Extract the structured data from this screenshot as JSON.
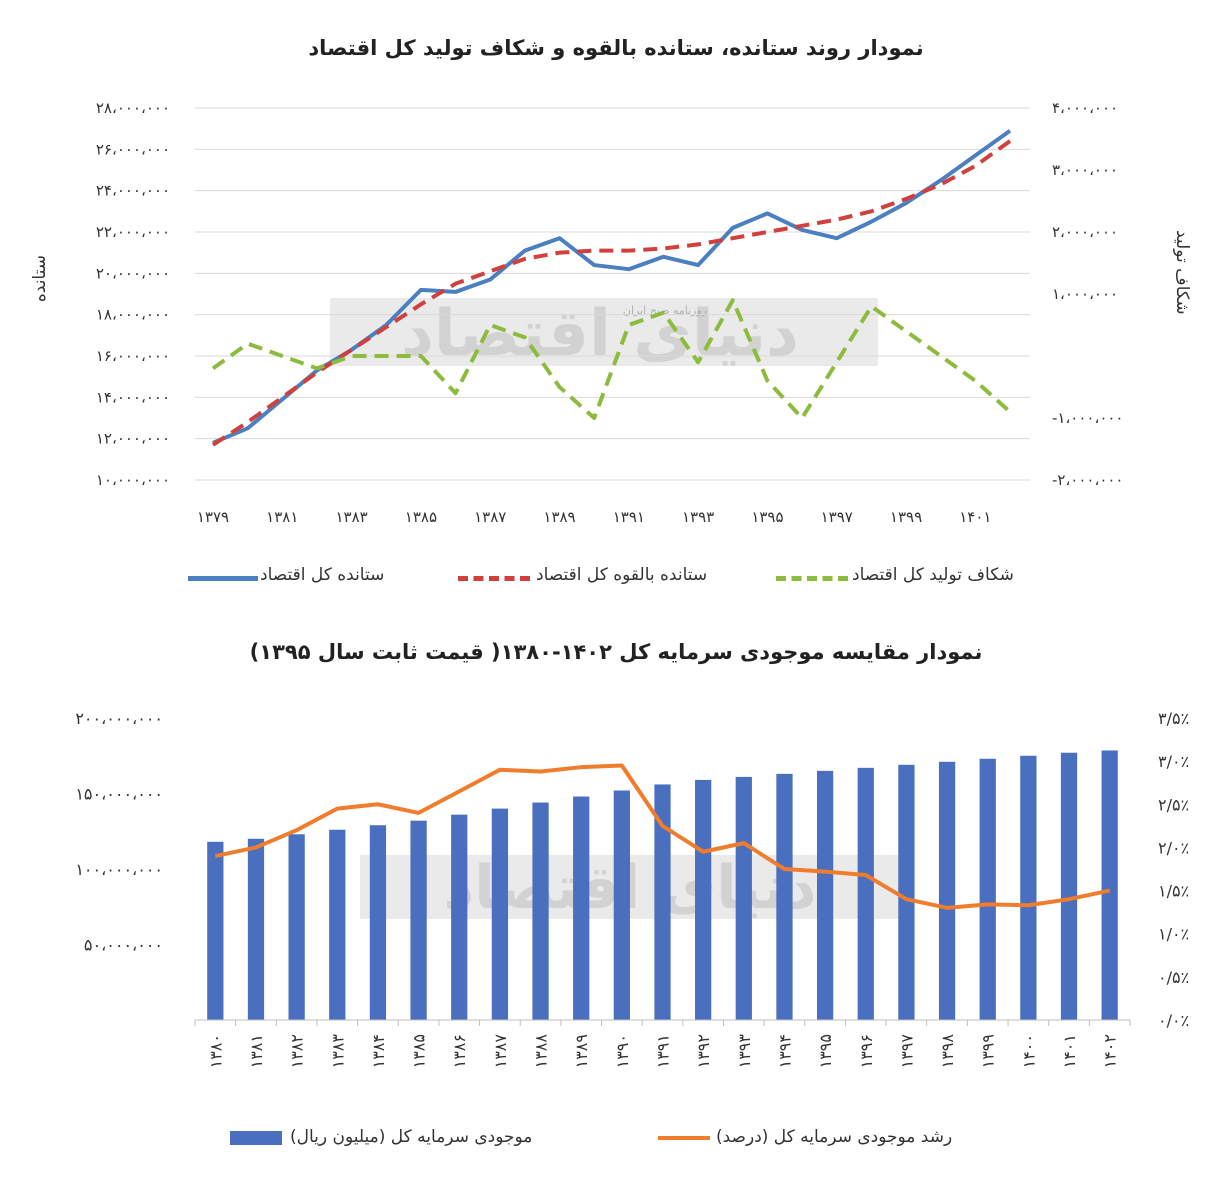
{
  "chart_data": [
    {
      "type": "line",
      "title": "نمودار روند ستانده، ستانده بالقوه و شکاف تولید کل اقتصاد",
      "ylabel": "ستانده",
      "y2label": "شکاف تولید",
      "x": [
        "1379",
        "1380",
        "1381",
        "1382",
        "1383",
        "1384",
        "1385",
        "1386",
        "1387",
        "1388",
        "1389",
        "1390",
        "1391",
        "1392",
        "1393",
        "1394",
        "1395",
        "1396",
        "1397",
        "1398",
        "1399",
        "1400",
        "1401",
        "1402"
      ],
      "xtick_labels": [
        "۱۳۷۹",
        "۱۳۸۱",
        "۱۳۸۳",
        "۱۳۸۵",
        "۱۳۸۷",
        "۱۳۸۹",
        "۱۳۹۱",
        "۱۳۹۳",
        "۱۳۹۵",
        "۱۳۹۷",
        "۱۳۹۹",
        "۱۴۰۱"
      ],
      "ylim": [
        10000000,
        28000000
      ],
      "yticks": [
        "۱۰،۰۰۰،۰۰۰",
        "۱۲،۰۰۰،۰۰۰",
        "۱۴،۰۰۰،۰۰۰",
        "۱۶،۰۰۰،۰۰۰",
        "۱۸،۰۰۰،۰۰۰",
        "۲۰،۰۰۰،۰۰۰",
        "۲۲،۰۰۰،۰۰۰",
        "۲۴،۰۰۰،۰۰۰",
        "۲۶،۰۰۰،۰۰۰",
        "۲۸،۰۰۰،۰۰۰"
      ],
      "y2lim": [
        -2000000,
        4000000
      ],
      "y2ticks": [
        "-۲،۰۰۰،۰۰۰",
        "-۱،۰۰۰،۰۰۰",
        "۰",
        "۱،۰۰۰،۰۰۰",
        "۲،۰۰۰،۰۰۰",
        "۳،۰۰۰،۰۰۰",
        "۴،۰۰۰،۰۰۰"
      ],
      "series": [
        {
          "name": "ستانده کل اقتصاد",
          "axis": "left",
          "color": "#4a7fc1",
          "style": "solid",
          "values": [
            11800000,
            12500000,
            13900000,
            15300000,
            16300000,
            17500000,
            19200000,
            19100000,
            19700000,
            21100000,
            21700000,
            20400000,
            20200000,
            20800000,
            20400000,
            22200000,
            22900000,
            22100000,
            21700000,
            22500000,
            23400000,
            24500000,
            25700000,
            26900000
          ]
        },
        {
          "name": "ستانده بالقوه کل اقتصاد",
          "axis": "left",
          "color": "#d0413e",
          "style": "dashed",
          "values": [
            11700000,
            12800000,
            14000000,
            15200000,
            16300000,
            17400000,
            18500000,
            19500000,
            20100000,
            20700000,
            21000000,
            21100000,
            21100000,
            21200000,
            21400000,
            21700000,
            22000000,
            22300000,
            22600000,
            23000000,
            23600000,
            24300000,
            25200000,
            26400000
          ]
        },
        {
          "name": "شکاف تولید کل اقتصاد",
          "axis": "right",
          "color": "#8dbb3d",
          "style": "dashed",
          "values": [
            -200000,
            200000,
            0,
            -200000,
            0,
            0,
            0,
            -600000,
            500000,
            300000,
            -500000,
            -1000000,
            500000,
            700000,
            -100000,
            900000,
            -400000,
            -1000000,
            -100000,
            800000,
            400000,
            0,
            -400000,
            -900000
          ]
        }
      ],
      "legend_position": "bottom",
      "grid": true
    },
    {
      "type": "bar",
      "title": "نمودار مقایسه موجودی سرمایه کل ۱۴۰۲-۱۳۸۰( قیمت ثابت سال ۱۳۹۵)",
      "categories": [
        "۱۳۸۰",
        "۱۳۸۱",
        "۱۳۸۲",
        "۱۳۸۳",
        "۱۳۸۴",
        "۱۳۸۵",
        "۱۳۸۶",
        "۱۳۸۷",
        "۱۳۸۸",
        "۱۳۸۹",
        "۱۳۹۰",
        "۱۳۹۱",
        "۱۳۹۲",
        "۱۳۹۳",
        "۱۳۹۴",
        "۱۳۹۵",
        "۱۳۹۶",
        "۱۳۹۷",
        "۱۳۹۸",
        "۱۳۹۹",
        "۱۴۰۰",
        "۱۴۰۱",
        "۱۴۰۲"
      ],
      "ylim": [
        0,
        200000000
      ],
      "yticks": [
        "۵۰،۰۰۰،۰۰۰",
        "۱۰۰،۰۰۰،۰۰۰",
        "۱۵۰،۰۰۰،۰۰۰",
        "۲۰۰،۰۰۰،۰۰۰"
      ],
      "y2lim": [
        0,
        3.5
      ],
      "y2ticks": [
        "۰/۰٪",
        "۰/۵٪",
        "۱/۰٪",
        "۱/۵٪",
        "۲/۰٪",
        "۲/۵٪",
        "۳/۰٪",
        "۳/۵٪"
      ],
      "series": [
        {
          "name": "موجودی سرمایه کل (میلیون ریال)",
          "type": "bar",
          "axis": "left",
          "color": "#4a6fbf",
          "values": [
            118000000,
            120000000,
            123000000,
            126000000,
            129000000,
            132000000,
            136000000,
            140000000,
            144000000,
            148000000,
            152000000,
            156000000,
            159000000,
            161000000,
            163000000,
            165000000,
            167000000,
            169000000,
            171000000,
            173000000,
            175000000,
            177000000,
            178500000
          ]
        },
        {
          "name": "رشد موجودی سرمایه کل (درصد)",
          "type": "line",
          "axis": "right",
          "color": "#ef7d2d",
          "values": [
            1.9,
            2.0,
            2.2,
            2.45,
            2.5,
            2.4,
            2.65,
            2.9,
            2.88,
            2.93,
            2.95,
            2.25,
            1.95,
            2.05,
            1.75,
            1.72,
            1.68,
            1.4,
            1.3,
            1.34,
            1.33,
            1.4,
            1.5
          ]
        }
      ],
      "legend_position": "bottom",
      "grid": false
    }
  ],
  "watermark": {
    "text": "دنیای اقتصاد",
    "sub": "روزنامه صبح ایران"
  }
}
